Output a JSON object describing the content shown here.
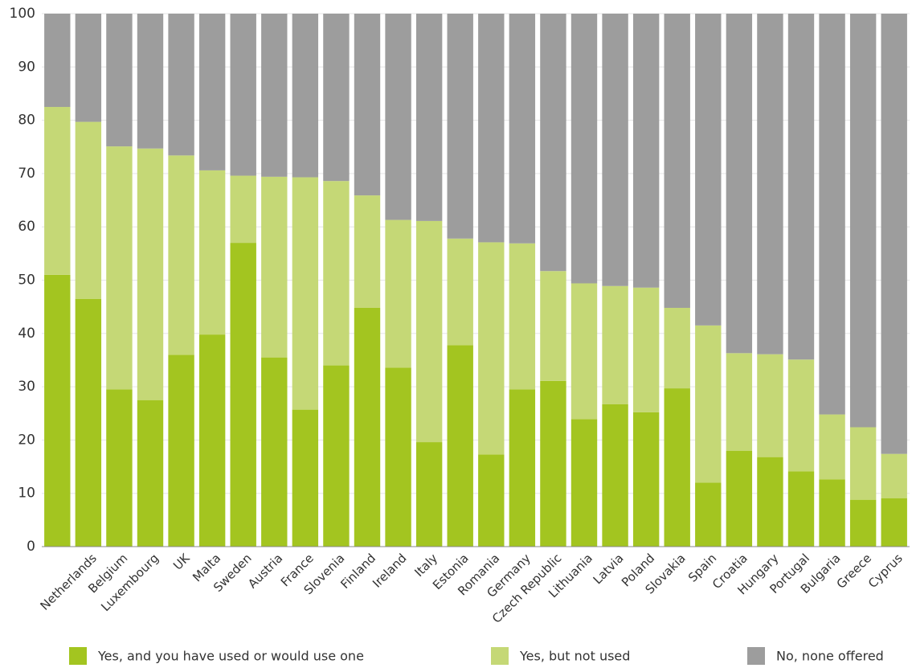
{
  "chart_data": {
    "type": "stacked_bar",
    "categories": [
      null,
      "Netherlands",
      "Belgium",
      "Luxembourg",
      "UK",
      "Malta",
      "Sweden",
      "Austria",
      "France",
      "Slovenia",
      "Finland",
      "Ireland",
      "Italy",
      "Estonia",
      "Romania",
      "Germany",
      "Czech Republic",
      "Lithuania",
      "Latvia",
      "Poland",
      "Slovakia",
      "Spain",
      "Croatia",
      "Hungary",
      "Portugal",
      "Bulgaria",
      "Greece",
      "Cyprus"
    ],
    "series": [
      {
        "name": "Yes, and you have used or would use one",
        "color": "#a3c520",
        "values": [
          51,
          46.5,
          29.5,
          27.5,
          36,
          39.8,
          57,
          35.5,
          25.7,
          34,
          44.8,
          33.6,
          19.6,
          37.8,
          17.3,
          29.5,
          31.1,
          23.9,
          26.7,
          25.2,
          29.7,
          12,
          18,
          16.8,
          14.1,
          12.6,
          8.8,
          9.1
        ]
      },
      {
        "name": "Yes, but not used",
        "color": "#c5d876",
        "values": [
          31.5,
          33.2,
          45.6,
          47.2,
          37.4,
          30.8,
          12.6,
          33.9,
          43.6,
          34.6,
          21.1,
          27.7,
          41.5,
          20.0,
          39.8,
          27.4,
          20.6,
          25.5,
          22.2,
          23.4,
          15.1,
          29.5,
          18.3,
          19.3,
          21.0,
          12.2,
          13.6,
          8.3
        ]
      },
      {
        "name": "No, none offered",
        "color": "#9d9d9d",
        "values": [
          17.5,
          20.3,
          24.9,
          25.3,
          26.6,
          29.4,
          30.4,
          30.6,
          30.7,
          31.4,
          34.1,
          38.7,
          38.9,
          42.2,
          42.9,
          43.1,
          48.3,
          50.6,
          51.1,
          51.4,
          55.2,
          58.5,
          63.7,
          63.9,
          64.9,
          75.2,
          77.6,
          82.6
        ]
      }
    ],
    "ylim": [
      0,
      100
    ],
    "yticks": [
      0,
      10,
      20,
      30,
      40,
      50,
      60,
      70,
      80,
      90,
      100
    ],
    "grid": true
  }
}
